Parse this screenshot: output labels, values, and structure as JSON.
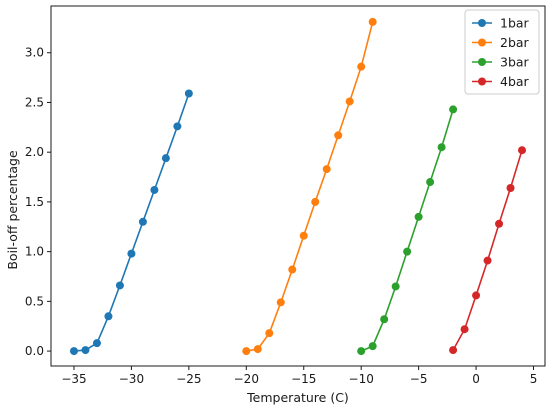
{
  "chart_data": {
    "type": "line",
    "xlabel": "Temperature (C)",
    "ylabel": "Boil-off percentage",
    "xlim": [
      -37.0,
      6.0
    ],
    "ylim": [
      -0.15,
      3.47
    ],
    "xticks": [
      -35,
      -30,
      -25,
      -20,
      -15,
      -10,
      -5,
      0,
      5
    ],
    "yticks": [
      0.0,
      0.5,
      1.0,
      1.5,
      2.0,
      2.5,
      3.0
    ],
    "grid": false,
    "legend_position": "top-right",
    "series": [
      {
        "name": "1bar",
        "color": "#1f77b4",
        "x": [
          -35,
          -34,
          -33,
          -32,
          -31,
          -30,
          -29,
          -28,
          -27,
          -26,
          -25
        ],
        "y": [
          0.0,
          0.01,
          0.08,
          0.35,
          0.66,
          0.98,
          1.3,
          1.62,
          1.94,
          2.26,
          2.59
        ]
      },
      {
        "name": "2bar",
        "color": "#ff7f0e",
        "x": [
          -20,
          -19,
          -18,
          -17,
          -16,
          -15,
          -14,
          -13,
          -12,
          -11,
          -10,
          -9
        ],
        "y": [
          0.0,
          0.02,
          0.18,
          0.49,
          0.82,
          1.16,
          1.5,
          1.83,
          2.17,
          2.51,
          2.86,
          3.31
        ]
      },
      {
        "name": "3bar",
        "color": "#2ca02c",
        "x": [
          -10,
          -9,
          -8,
          -7,
          -6,
          -5,
          -4,
          -3,
          -2
        ],
        "y": [
          0.0,
          0.05,
          0.32,
          0.65,
          1.0,
          1.35,
          1.7,
          2.05,
          2.43
        ]
      },
      {
        "name": "4bar",
        "color": "#d62728",
        "x": [
          -2,
          -1,
          0,
          1,
          2,
          3,
          4
        ],
        "y": [
          0.01,
          0.22,
          0.56,
          0.91,
          1.28,
          1.64,
          2.02
        ]
      }
    ]
  }
}
